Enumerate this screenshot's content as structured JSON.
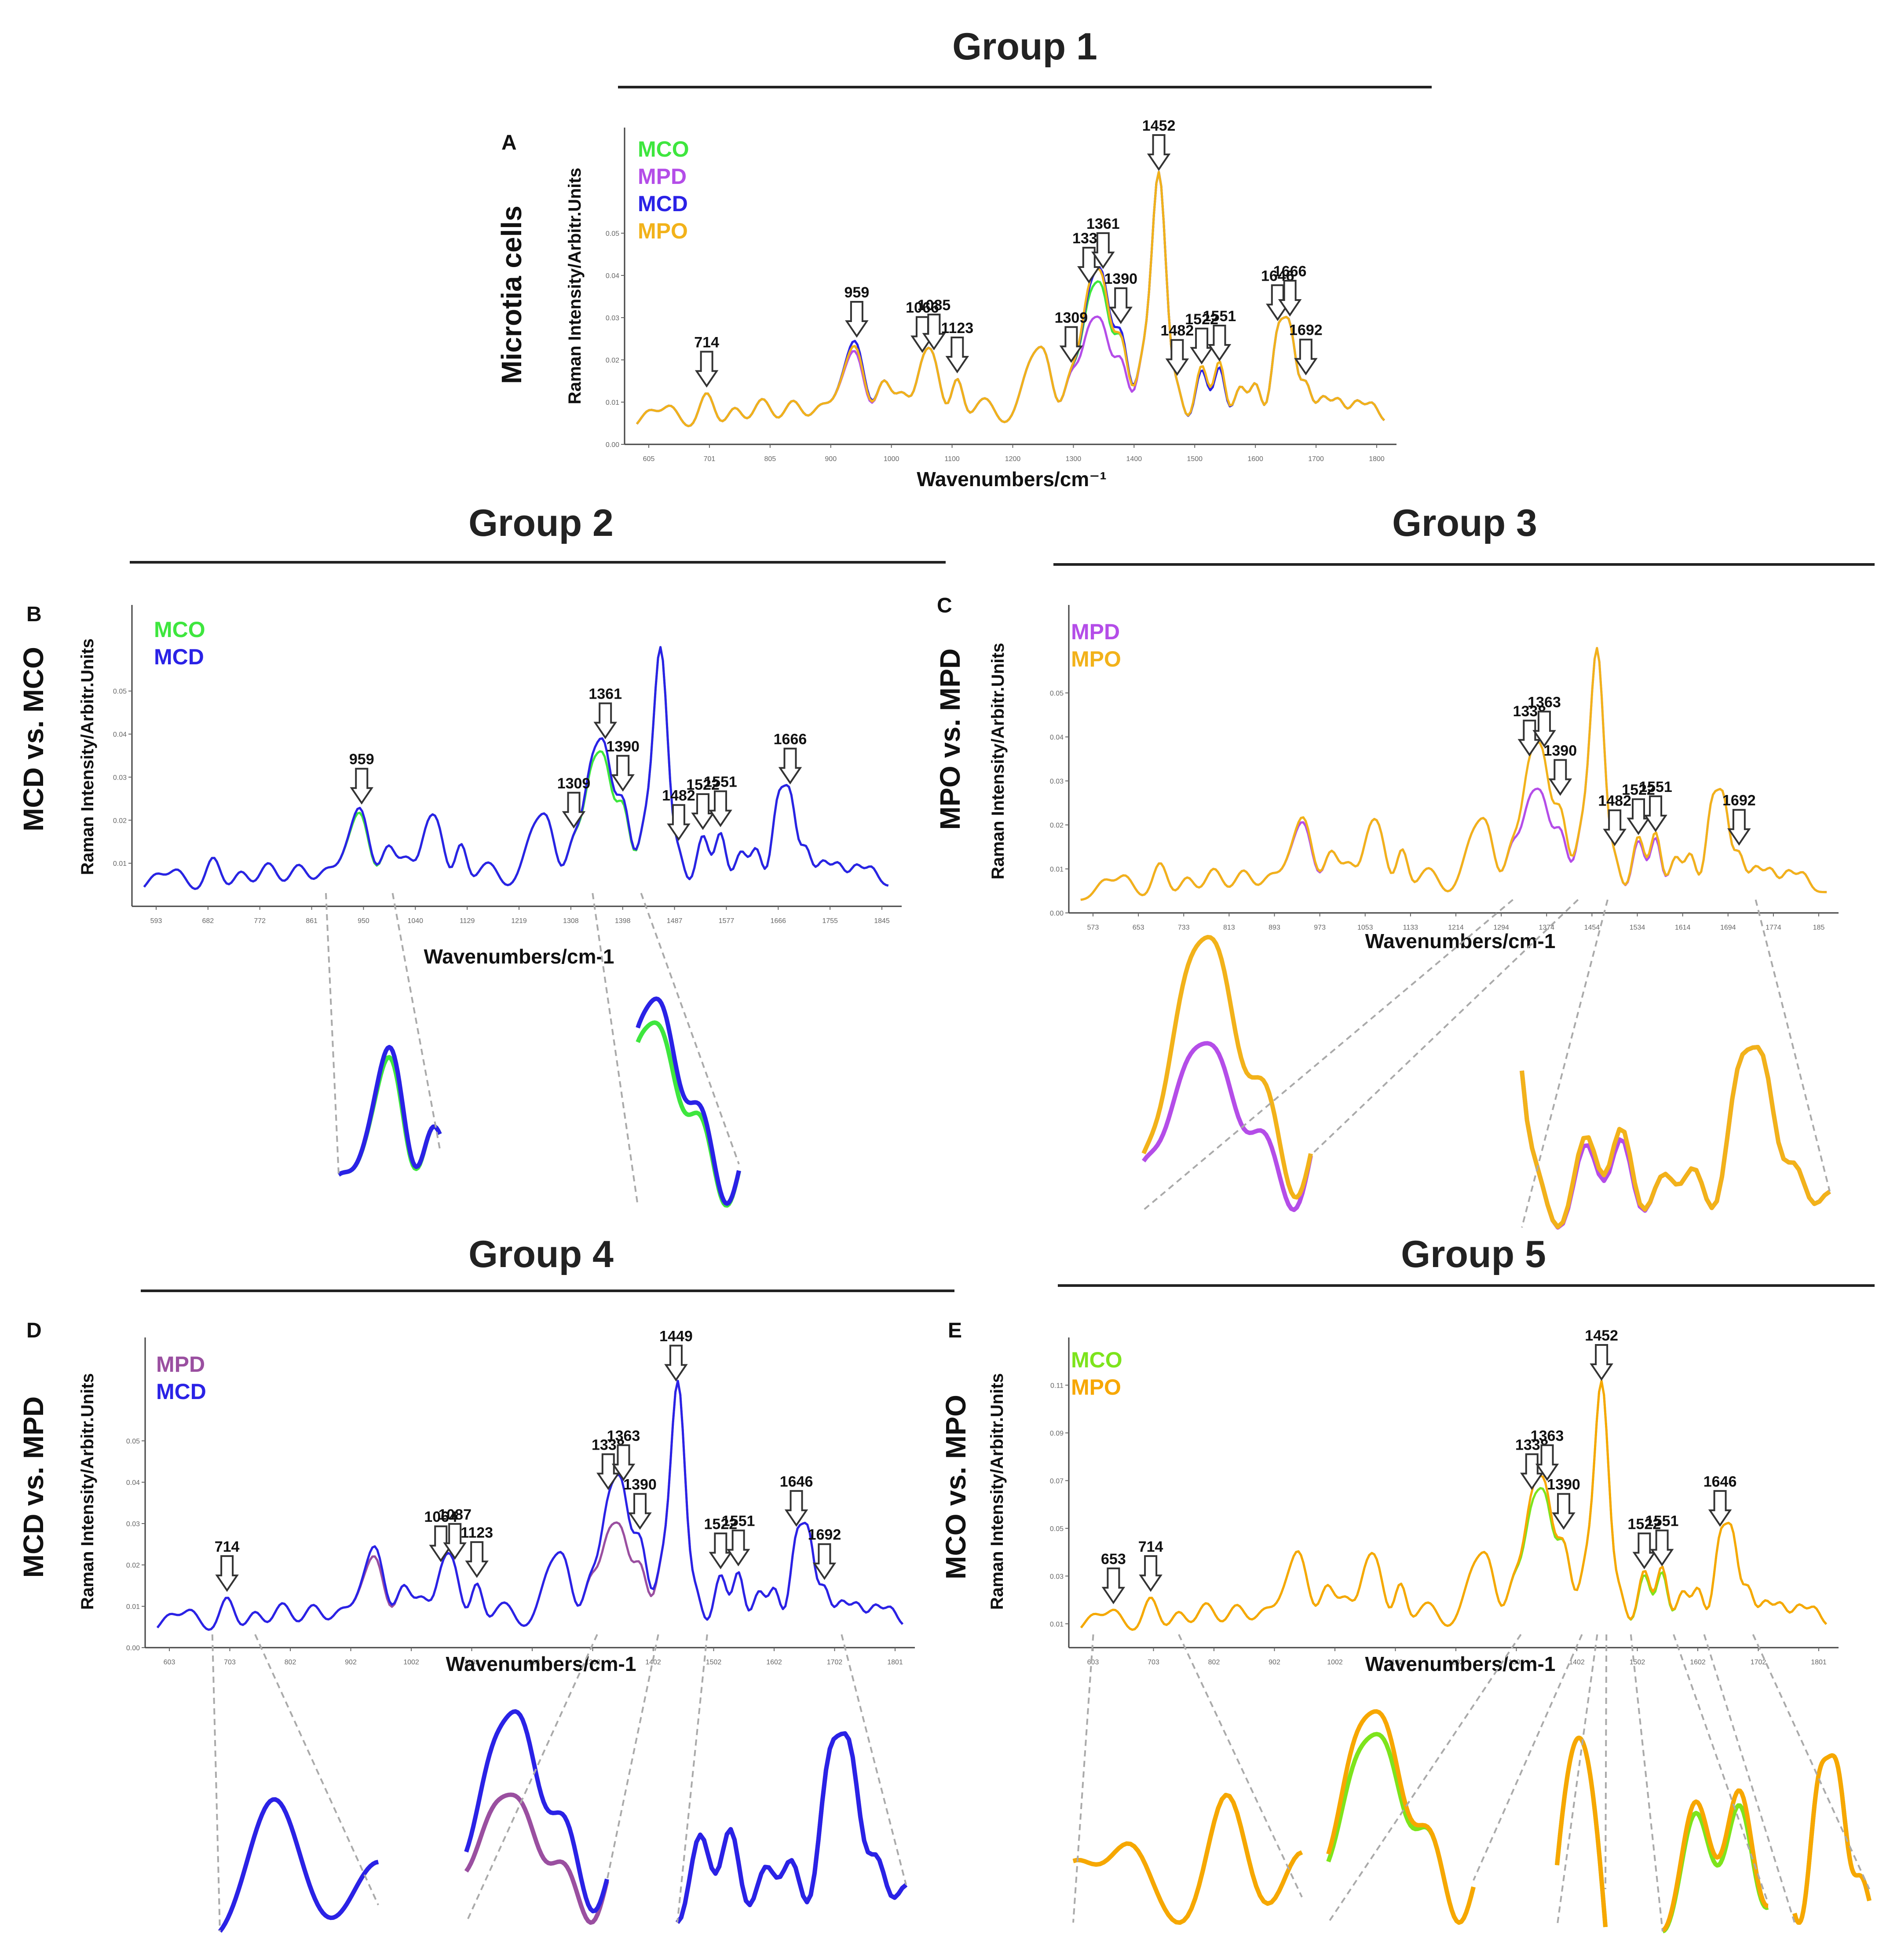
{
  "colors": {
    "MCO": "#3ee63e",
    "MPD": "#b44de8",
    "MCD": "#2a22e6",
    "MPO": "#f2b21a",
    "MCO_E": "#7de41c",
    "MPO_E": "#f7a700",
    "MPD_D": "#9a4fa0",
    "MCD_D": "#2a22e6"
  },
  "chart_data": [
    {
      "id": "A",
      "type": "line",
      "group_title": "Group 1",
      "panel_label": "A",
      "outer_ylabel": "Microtia cells",
      "ylabel": "Raman Intensity/Arbitr.Units",
      "xlabel": "Wavenumbers/cm⁻¹",
      "xlim": [
        580,
        1840
      ],
      "ylim": [
        0,
        0.075
      ],
      "x_ticks": [
        "605",
        "701",
        "805",
        "900",
        "1000",
        "1100",
        "1200",
        "1300",
        "1400",
        "1500",
        "1600",
        "1700",
        "1800"
      ],
      "y_ticks": [
        "0.00",
        "0.01",
        "0.02",
        "0.03",
        "0.04",
        "0.05"
      ],
      "y_tick_values": [
        0,
        0.01,
        0.02,
        0.03,
        0.04,
        0.05
      ],
      "series": [
        {
          "name": "MCO",
          "color_key": "MCO",
          "variant": 1
        },
        {
          "name": "MPD",
          "color_key": "MPD",
          "variant": 2
        },
        {
          "name": "MCD",
          "color_key": "MCD",
          "variant": 3
        },
        {
          "name": "MPO",
          "color_key": "MPO",
          "variant": 4
        }
      ],
      "peaks": [
        "714",
        "959",
        "1066",
        "1085",
        "1123",
        "1309",
        "1338",
        "1361",
        "1390",
        "1452",
        "1482",
        "1522",
        "1551",
        "1646",
        "1666",
        "1692"
      ],
      "peak_positions": [
        714,
        959,
        1066,
        1085,
        1123,
        1309,
        1338,
        1361,
        1390,
        1452,
        1482,
        1522,
        1551,
        1646,
        1666,
        1692
      ]
    },
    {
      "id": "B",
      "type": "line",
      "group_title": "Group 2",
      "panel_label": "B",
      "outer_ylabel": "MCD vs. MCO",
      "ylabel": "Raman Intensity/Arbitr.Units",
      "xlabel": "Wavenumbers/cm-1",
      "xlim": [
        580,
        1850
      ],
      "ylim": [
        0,
        0.07
      ],
      "x_ticks": [
        "593",
        "682",
        "772",
        "861",
        "950",
        "1040",
        "1129",
        "1219",
        "1308",
        "1398",
        "1487",
        "1577",
        "1666",
        "1755",
        "1845"
      ],
      "y_ticks": [
        "0.01",
        "0.02",
        "0.03",
        "0.04",
        "0.05"
      ],
      "y_tick_values": [
        0.01,
        0.02,
        0.03,
        0.04,
        0.05
      ],
      "series": [
        {
          "name": "MCO",
          "color_key": "MCO",
          "variant": 1
        },
        {
          "name": "MCD",
          "color_key": "MCD",
          "variant": 3
        }
      ],
      "peaks": [
        "959",
        "1309",
        "1361",
        "1390",
        "1482",
        "1522",
        "1551",
        "1666"
      ],
      "peak_positions": [
        959,
        1309,
        1361,
        1390,
        1482,
        1522,
        1551,
        1666
      ]
    },
    {
      "id": "C",
      "type": "line",
      "group_title": "Group 3",
      "panel_label": "C",
      "outer_ylabel": "MPO vs. MPD",
      "ylabel": "Raman Intensity/Arbitr.Units",
      "xlabel": "Wavenumbers/cm-1",
      "xlim": [
        560,
        1860
      ],
      "ylim": [
        0,
        0.07
      ],
      "x_ticks": [
        "573",
        "653",
        "733",
        "813",
        "893",
        "973",
        "1053",
        "1133",
        "1214",
        "1294",
        "1374",
        "1454",
        "1534",
        "1614",
        "1694",
        "1774",
        "185"
      ],
      "y_ticks": [
        "0.00",
        "0.01",
        "0.02",
        "0.03",
        "0.04",
        "0.05"
      ],
      "y_tick_values": [
        0,
        0.01,
        0.02,
        0.03,
        0.04,
        0.05
      ],
      "series": [
        {
          "name": "MPD",
          "color_key": "MPD",
          "variant": 2
        },
        {
          "name": "MPO",
          "color_key": "MPO",
          "variant": 4
        }
      ],
      "peaks": [
        "1338",
        "1363",
        "1390",
        "1482",
        "1522",
        "1551",
        "1692"
      ],
      "peak_positions": [
        1338,
        1363,
        1390,
        1482,
        1522,
        1551,
        1692
      ]
    },
    {
      "id": "D",
      "type": "line",
      "group_title": "Group 4",
      "panel_label": "D",
      "outer_ylabel": "MCD vs. MPD",
      "ylabel": "Raman Intensity/Arbitr.Units",
      "xlabel": "Wavenumbers/cm-1",
      "xlim": [
        580,
        1840
      ],
      "ylim": [
        0,
        0.075
      ],
      "x_ticks": [
        "603",
        "703",
        "802",
        "902",
        "1002",
        "1102",
        "1202",
        "1302",
        "1402",
        "1502",
        "1602",
        "1702",
        "1801"
      ],
      "y_ticks": [
        "0.00",
        "0.01",
        "0.02",
        "0.03",
        "0.04",
        "0.05"
      ],
      "y_tick_values": [
        0,
        0.01,
        0.02,
        0.03,
        0.04,
        0.05
      ],
      "series": [
        {
          "name": "MPD",
          "color_key": "MPD_D",
          "variant": 2
        },
        {
          "name": "MCD",
          "color_key": "MCD_D",
          "variant": 3
        }
      ],
      "peaks": [
        "714",
        "1064",
        "1087",
        "1123",
        "1338",
        "1363",
        "1390",
        "1449",
        "1522",
        "1551",
        "1646",
        "1692"
      ],
      "peak_positions": [
        714,
        1064,
        1087,
        1123,
        1338,
        1363,
        1390,
        1449,
        1522,
        1551,
        1646,
        1692
      ]
    },
    {
      "id": "E",
      "type": "line",
      "group_title": "Group 5",
      "panel_label": "E",
      "outer_ylabel": "MCO vs. MPO",
      "ylabel": "Raman Intensity/Arbitr.Units",
      "xlabel": "Wavenumbers/cm-1",
      "xlim": [
        580,
        1840
      ],
      "ylim": [
        0,
        0.13
      ],
      "x_ticks": [
        "603",
        "703",
        "802",
        "902",
        "1002",
        "1102",
        "1202",
        "1302",
        "1402",
        "1502",
        "1602",
        "1702",
        "1801"
      ],
      "y_ticks": [
        "0.01",
        "0.03",
        "0.05",
        "0.07",
        "0.09",
        "0.11"
      ],
      "y_tick_values": [
        0.01,
        0.03,
        0.05,
        0.07,
        0.09,
        0.11
      ],
      "series": [
        {
          "name": "MCO",
          "color_key": "MCO_E",
          "variant": 1
        },
        {
          "name": "MPO",
          "color_key": "MPO_E",
          "variant": 4
        }
      ],
      "peaks": [
        "653",
        "714",
        "1338",
        "1363",
        "1390",
        "1452",
        "1522",
        "1551",
        "1646"
      ],
      "peak_positions": [
        653,
        714,
        1338,
        1363,
        1390,
        1452,
        1522,
        1551,
        1646
      ]
    }
  ]
}
